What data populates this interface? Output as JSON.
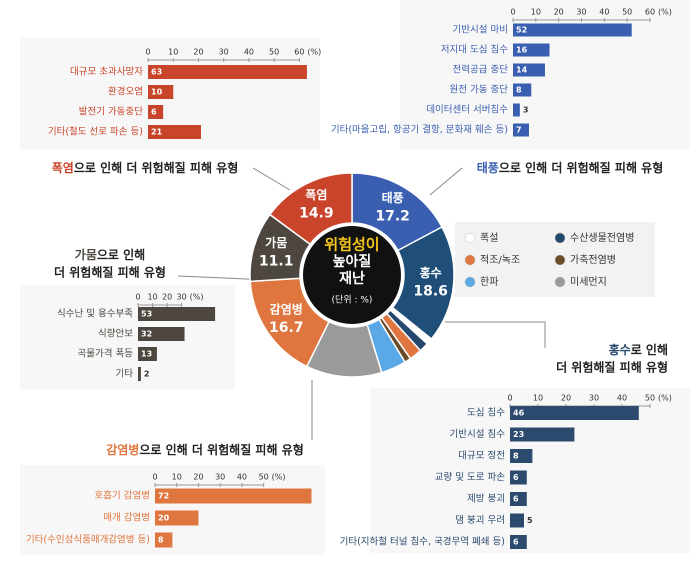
{
  "chart_data": [
    {
      "type": "pie",
      "categories": [
        "태풍",
        "홍수",
        "폭설",
        "수산생물전염병",
        "적조/녹조",
        "가축전염병",
        "한파",
        "미세먼지",
        "감염병",
        "가뭄",
        "폭염"
      ],
      "values": [
        17.2,
        18.6,
        1.0,
        1.5,
        2.0,
        1.0,
        4.0,
        12.0,
        16.7,
        11.1,
        14.9
      ],
      "value_labels": [
        "17.2",
        "18.6",
        null,
        null,
        null,
        null,
        null,
        null,
        "16.7",
        "11.1",
        "14.9"
      ],
      "colors": [
        "#3a5fb0",
        "#1f4e79",
        "#ffffff",
        "#24476e",
        "#e0763f",
        "#6b4a2a",
        "#5aa9e6",
        "#9a9a9a",
        "#e0763f",
        "#4d4740",
        "#c9442b"
      ],
      "center": {
        "lines": [
          "위험성이",
          "높아질",
          "재난"
        ],
        "unit": "(단위 : %)"
      }
    },
    {
      "type": "bar",
      "orientation": "horizontal",
      "title": [
        "폭염",
        "으로 인해 더 위험해질 피해 유형"
      ],
      "categories": [
        "대규모 초과사망자",
        "환경오염",
        "발전기 가동중단",
        "기타(철도 선로 파손 등)"
      ],
      "values": [
        63,
        10,
        6,
        21
      ],
      "color": "#c8442a",
      "xlim": [
        0,
        65
      ],
      "xticks": [
        0,
        10,
        20,
        30,
        40,
        50,
        60
      ],
      "unit": "(%)"
    },
    {
      "type": "bar",
      "orientation": "horizontal",
      "title": [
        "태풍",
        "으로 인해 더 위험해질 피해 유형"
      ],
      "categories": [
        "기반시설 마비",
        "저지대 도심 침수",
        "전력공급 중단",
        "원전 가동 중단",
        "데이터센터 서버침수",
        "기타(마을고립, 항공기 결항, 문화재 훼손 등)"
      ],
      "values": [
        52,
        16,
        14,
        8,
        3,
        7
      ],
      "color": "#3a5fb0",
      "xlim": [
        0,
        60
      ],
      "xticks": [
        0,
        10,
        20,
        30,
        40,
        50,
        60
      ],
      "unit": "(%)"
    },
    {
      "type": "bar",
      "orientation": "horizontal",
      "title": [
        "가뭄",
        "으로 인해",
        "더 위험해질 피해 유형"
      ],
      "categories": [
        "식수난 및 용수부족",
        "식량안보",
        "곡물가격 폭등",
        "기타"
      ],
      "values": [
        53,
        32,
        13,
        2
      ],
      "color": "#4d4740",
      "xlim": [
        0,
        55
      ],
      "xticks": [
        0,
        10,
        20,
        30
      ],
      "unit": "(%)"
    },
    {
      "type": "bar",
      "orientation": "horizontal",
      "title": [
        "홍수",
        "로 인해",
        "더 위험해질 피해 유형"
      ],
      "categories": [
        "도심 침수",
        "기반시설 침수",
        "대규모 정전",
        "교량 및 도로 파손",
        "제방 붕괴",
        "댐 붕괴 우려",
        "기타(지하철 터널 침수, 국경무역 폐쇄 등)"
      ],
      "values": [
        46,
        23,
        8,
        6,
        6,
        5,
        6
      ],
      "color": "#2b4a6e",
      "xlim": [
        0,
        50
      ],
      "xticks": [
        0,
        10,
        20,
        30,
        40,
        50
      ],
      "unit": "(%)"
    },
    {
      "type": "bar",
      "orientation": "horizontal",
      "title": [
        "감염병",
        "으로 인해 더 위험해질 피해 유형"
      ],
      "categories": [
        "호흡기 감염병",
        "매개 감염병",
        "기타(수인성식품매개감염병 등)"
      ],
      "values": [
        72,
        20,
        8
      ],
      "color": "#e0763f",
      "xlim": [
        0,
        75
      ],
      "xticks": [
        0,
        10,
        20,
        30,
        40,
        50
      ],
      "unit": "(%)"
    }
  ]
}
